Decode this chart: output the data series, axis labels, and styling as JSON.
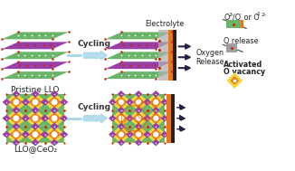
{
  "bg_color": "#ffffff",
  "label_fontsize": 6.5,
  "small_fontsize": 5.8,
  "sup_fontsize": 4.5,
  "colors": {
    "green": "#6ab46a",
    "purple": "#9940a8",
    "yellow": "#f0d840",
    "orange_fill": "#e88020",
    "red_dot": "#cc2200",
    "white_dot": "#f8f8f8",
    "gray_elec": "#b0b0b0",
    "orange_strip": "#e87820",
    "dark_strip": "#222222",
    "cycling_blue": "#a8d8e8",
    "arrow_dark": "#222244",
    "legend_gray": "#a0a0a0",
    "swirl": "#dd6600"
  },
  "texts": {
    "pristine_llo": "Pristine LLO",
    "llo_ceo2": "LLO@CeO₂",
    "electrolyte": "Electrolyte",
    "cycling": "Cycling",
    "oxygen_release": "Oxygen\nRelease",
    "legend1_main": "O",
    "legend1_sup1": "2-",
    "legend1_mid": "/O",
    "legend1_sup2": "-",
    "legend1_end": " or O",
    "legend1_sub": "2",
    "legend1_sup3": "2-",
    "legend2": "O release",
    "legend3_line1": "Activated",
    "legend3_line2": "O vacancy"
  }
}
